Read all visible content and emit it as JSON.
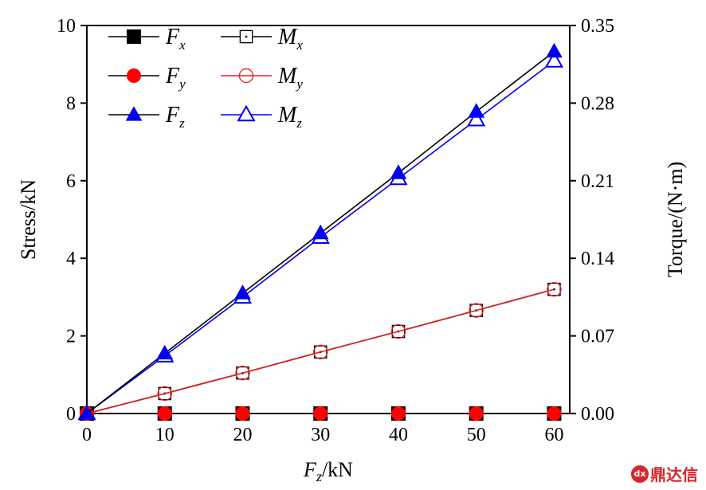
{
  "chart_data": {
    "type": "line",
    "x": [
      0,
      10,
      20,
      30,
      40,
      50,
      60
    ],
    "xlim": [
      0,
      62
    ],
    "ylim_left": [
      0,
      10
    ],
    "ylim_right": [
      0,
      0.35
    ],
    "xticks": [
      "0",
      "10",
      "20",
      "30",
      "40",
      "50",
      "60"
    ],
    "yticks_left": [
      "0",
      "2",
      "4",
      "6",
      "8",
      "10"
    ],
    "yticks_right": [
      "0.00",
      "0.07",
      "0.14",
      "0.21",
      "0.28",
      "0.35"
    ],
    "xlabel": {
      "main": "F",
      "sub": "z",
      "rest": "/kN"
    },
    "ylabel_left": "Stress/kN",
    "ylabel_right": "Torque/(N·m)",
    "legend_position": "top-left",
    "series": [
      {
        "name": "F",
        "sub": "x",
        "axis": "left",
        "marker": "square-filled",
        "color": "#000000",
        "line": "#000000",
        "values": [
          0,
          0,
          0,
          0,
          0,
          0,
          0
        ]
      },
      {
        "name": "F",
        "sub": "y",
        "axis": "left",
        "marker": "circle-filled",
        "color": "#ff0000",
        "line": "#000000",
        "values": [
          0,
          0,
          0,
          0,
          0,
          0,
          0
        ]
      },
      {
        "name": "F",
        "sub": "z",
        "axis": "left",
        "marker": "triangle-filled",
        "color": "#0000ee",
        "line": "#000000",
        "values": [
          0,
          1.55,
          3.1,
          4.65,
          6.2,
          7.78,
          9.33
        ]
      },
      {
        "name": "M",
        "sub": "x",
        "axis": "right",
        "marker": "square-open-dot",
        "color": "#000000",
        "line": "#000000",
        "values": [
          0,
          0.018,
          0.0365,
          0.0555,
          0.074,
          0.093,
          0.112
        ]
      },
      {
        "name": "M",
        "sub": "y",
        "axis": "right",
        "marker": "circle-open-line",
        "color": "#e02020",
        "line": "#e02020",
        "values": [
          0,
          0.018,
          0.0365,
          0.0555,
          0.074,
          0.093,
          0.112
        ]
      },
      {
        "name": "M",
        "sub": "z",
        "axis": "right",
        "marker": "triangle-open",
        "color": "#0000ee",
        "line": "#0000ee",
        "values": [
          0,
          0.052,
          0.105,
          0.159,
          0.212,
          0.265,
          0.318
        ]
      }
    ]
  },
  "watermark": {
    "logo": "dx",
    "text": "鼎达信"
  }
}
